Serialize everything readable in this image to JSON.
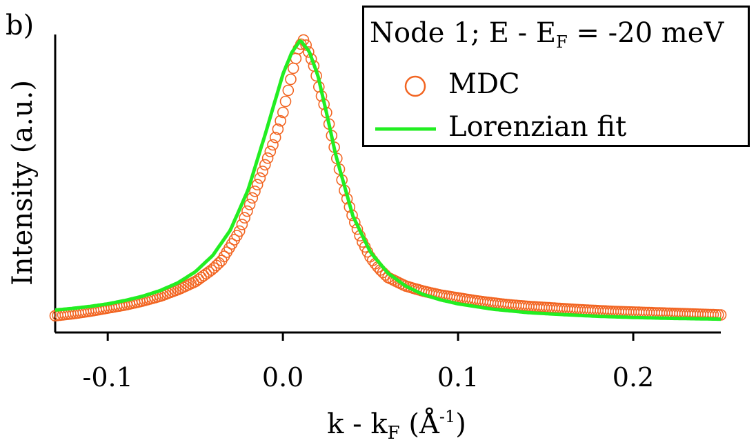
{
  "panel_label": "b)",
  "legend": {
    "title_prefix": "Node 1; E - E",
    "title_sub": "F",
    "title_suffix": " = -20 meV",
    "items": [
      {
        "label": "MDC",
        "color": "#f26522",
        "marker": "open-circle"
      },
      {
        "label": "Lorenzian fit",
        "color": "#22ee22",
        "marker": "line"
      }
    ]
  },
  "chart_data": {
    "type": "scatter",
    "title": "",
    "xlabel": "k - k",
    "xlabel_sub": "F",
    "xlabel_unit": " (Å",
    "xlabel_unit_sup": "-1",
    "xlabel_close": ")",
    "ylabel": "Intensity (a.u.)",
    "xlim": [
      -0.13,
      0.25
    ],
    "ylim": [
      0,
      1.0
    ],
    "xticks": [
      -0.1,
      0.0,
      0.1,
      0.2
    ],
    "xtick_labels": [
      "-0.1",
      "0.0",
      "0.1",
      "0.2"
    ],
    "grid": false,
    "legend_position": "top-right",
    "series": [
      {
        "name": "MDC",
        "style": "open-circle",
        "color": "#f26522",
        "x": [
          -0.13,
          -0.12,
          -0.11,
          -0.1,
          -0.09,
          -0.08,
          -0.07,
          -0.06,
          -0.05,
          -0.04,
          -0.035,
          -0.03,
          -0.025,
          -0.02,
          -0.015,
          -0.01,
          -0.005,
          0.0,
          0.003,
          0.006,
          0.009,
          0.012,
          0.015,
          0.018,
          0.021,
          0.025,
          0.03,
          0.035,
          0.04,
          0.045,
          0.05,
          0.055,
          0.06,
          0.07,
          0.08,
          0.09,
          0.1,
          0.11,
          0.12,
          0.13,
          0.14,
          0.15,
          0.16,
          0.17,
          0.18,
          0.19,
          0.2,
          0.21,
          0.22,
          0.23,
          0.24,
          0.25
        ],
        "y": [
          0.025,
          0.032,
          0.041,
          0.052,
          0.063,
          0.077,
          0.094,
          0.117,
          0.145,
          0.19,
          0.22,
          0.27,
          0.32,
          0.4,
          0.48,
          0.56,
          0.64,
          0.74,
          0.82,
          0.9,
          0.97,
          1.0,
          0.95,
          0.9,
          0.82,
          0.74,
          0.6,
          0.47,
          0.37,
          0.29,
          0.23,
          0.19,
          0.16,
          0.13,
          0.112,
          0.098,
          0.088,
          0.078,
          0.07,
          0.063,
          0.058,
          0.054,
          0.05,
          0.046,
          0.043,
          0.04,
          0.038,
          0.036,
          0.034,
          0.032,
          0.03,
          0.028
        ]
      },
      {
        "name": "Lorenzian fit",
        "style": "line",
        "color": "#22ee22",
        "x": [
          -0.13,
          -0.12,
          -0.11,
          -0.1,
          -0.09,
          -0.08,
          -0.07,
          -0.06,
          -0.05,
          -0.04,
          -0.03,
          -0.02,
          -0.01,
          0.0,
          0.005,
          0.01,
          0.012,
          0.015,
          0.02,
          0.025,
          0.03,
          0.04,
          0.05,
          0.06,
          0.07,
          0.08,
          0.09,
          0.1,
          0.12,
          0.14,
          0.16,
          0.18,
          0.2,
          0.22,
          0.24,
          0.25
        ],
        "y": [
          0.045,
          0.051,
          0.058,
          0.067,
          0.079,
          0.094,
          0.114,
          0.141,
          0.18,
          0.238,
          0.327,
          0.467,
          0.667,
          0.877,
          0.953,
          0.997,
          0.98,
          0.958,
          0.871,
          0.738,
          0.596,
          0.376,
          0.249,
          0.175,
          0.13,
          0.1,
          0.081,
          0.067,
          0.048,
          0.036,
          0.029,
          0.023,
          0.019,
          0.016,
          0.014,
          0.013
        ]
      }
    ]
  }
}
